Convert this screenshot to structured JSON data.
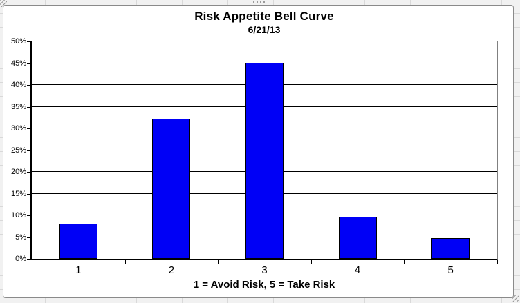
{
  "chart_data": {
    "type": "bar",
    "title": "Risk Appetite Bell Curve",
    "subtitle": "6/21/13",
    "categories": [
      "1",
      "2",
      "3",
      "4",
      "5"
    ],
    "values": [
      8.1,
      32.3,
      45.1,
      9.7,
      4.8
    ],
    "xlabel": "1 = Avoid Risk, 5 = Take Risk",
    "ylabel": "",
    "ylim": [
      0,
      50
    ],
    "ytick_step": 5,
    "ytick_labels": [
      "0%",
      "5%",
      "10%",
      "15%",
      "20%",
      "25%",
      "30%",
      "35%",
      "40%",
      "45%",
      "50%"
    ],
    "grid": true,
    "legend": "none",
    "colors": {
      "bar_fill": "#0000F6",
      "bar_border": "#000000",
      "gridline": "#000000",
      "plot_border": "#808080",
      "axis_line": "#000000",
      "text": "#000000",
      "chart_background": "#FFFFFF",
      "sheet_background": "#F1F1F1"
    }
  },
  "ui": {
    "selection_handles": [
      "top-left-corner",
      "top-center",
      "bottom-right-corner"
    ]
  }
}
